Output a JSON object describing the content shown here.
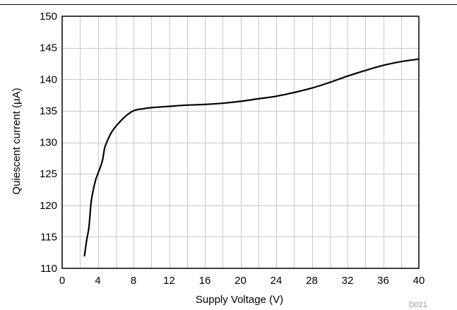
{
  "chart_data": {
    "type": "line",
    "title": "",
    "xlabel": "Supply Voltage (V)",
    "ylabel": "Quiescent current (µA)",
    "xlim": [
      0,
      40
    ],
    "ylim": [
      110,
      150
    ],
    "x_ticks": [
      0,
      4,
      8,
      12,
      16,
      20,
      24,
      28,
      32,
      36,
      40
    ],
    "y_ticks": [
      110,
      115,
      120,
      125,
      130,
      135,
      140,
      145,
      150
    ],
    "x_minor_step": 2,
    "grid": true,
    "legend": "none",
    "series": [
      {
        "color": "#000000",
        "x": [
          2.5,
          2.75,
          3.0,
          3.25,
          3.5,
          3.75,
          4.0,
          4.5,
          4.75,
          5.0,
          5.5,
          6.0,
          7.0,
          8.0,
          9.0,
          10.0,
          12.0,
          14.0,
          16.0,
          18.0,
          20.0,
          22.0,
          24.0,
          26.0,
          28.0,
          30.0,
          32.0,
          34.0,
          36.0,
          38.0,
          40.0
        ],
        "y": [
          112.0,
          114.5,
          116.5,
          120.5,
          122.5,
          124.0,
          125.0,
          127.0,
          129.0,
          130.0,
          131.5,
          132.5,
          134.0,
          135.0,
          135.3,
          135.5,
          135.7,
          135.9,
          136.0,
          136.2,
          136.5,
          136.9,
          137.3,
          137.9,
          138.6,
          139.5,
          140.5,
          141.4,
          142.2,
          142.8,
          143.2
        ]
      }
    ]
  },
  "figure_id": "D021",
  "colors": {
    "grid": "#c8c8c8",
    "axis": "#000000",
    "line": "#000000",
    "footnote": "#999999"
  }
}
